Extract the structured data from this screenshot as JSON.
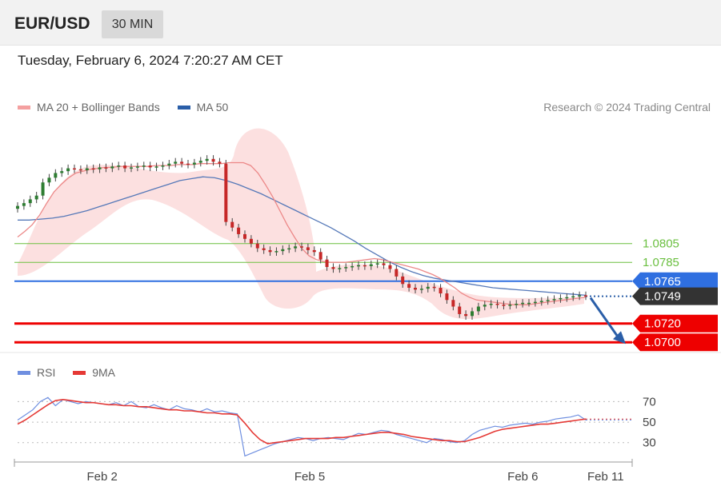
{
  "header": {
    "symbol": "EUR/USD",
    "interval": "30 MIN"
  },
  "datetime": "Tuesday, February 6, 2024 7:20:27 AM CET",
  "legend": {
    "ma20_label": "MA 20 + Bollinger Bands",
    "ma20_color": "#f08080",
    "ma50_label": "MA 50",
    "ma50_color": "#2a5ea8"
  },
  "credit": "Research © 2024 Trading Central",
  "rsi_legend": {
    "rsi_label": "RSI",
    "rsi_color": "#5b7fd6",
    "ma9_label": "9MA",
    "ma9_color": "#e53935"
  },
  "chart_data": [
    {
      "type": "candlestick",
      "title": "EUR/USD",
      "ylim": [
        1.069,
        1.0945
      ],
      "x_ticks": [
        "Feb 2",
        "Feb 5",
        "Feb 6",
        "Feb 11"
      ],
      "current_price": "1.0749",
      "levels": [
        {
          "label": "1.0805",
          "value": 1.0805,
          "kind": "resistance",
          "color": "#6abf3f"
        },
        {
          "label": "1.0785",
          "value": 1.0785,
          "kind": "resistance",
          "color": "#6abf3f"
        },
        {
          "label": "1.0765",
          "value": 1.0765,
          "kind": "pivot",
          "color": "#2f6fe0"
        },
        {
          "label": "1.0749",
          "value": 1.0749,
          "kind": "last",
          "color": "#333333"
        },
        {
          "label": "1.0720",
          "value": 1.072,
          "kind": "support",
          "color": "#ee0000"
        },
        {
          "label": "1.0700",
          "value": 1.07,
          "kind": "support",
          "color": "#ee0000"
        }
      ],
      "close_series": [
        1.0845,
        1.0848,
        1.0852,
        1.0856,
        1.087,
        1.0875,
        1.088,
        1.0882,
        1.0885,
        1.0884,
        1.0883,
        1.0885,
        1.0884,
        1.0886,
        1.0885,
        1.0887,
        1.0888,
        1.0885,
        1.0886,
        1.0887,
        1.0888,
        1.0886,
        1.0887,
        1.0888,
        1.089,
        1.0892,
        1.089,
        1.0889,
        1.0891,
        1.0893,
        1.0895,
        1.0892,
        1.089,
        1.0828,
        1.0822,
        1.0815,
        1.081,
        1.0805,
        1.08,
        1.0798,
        1.0796,
        1.0797,
        1.0799,
        1.08,
        1.0802,
        1.0801,
        1.0798,
        1.0796,
        1.0788,
        1.078,
        1.0778,
        1.0779,
        1.078,
        1.0781,
        1.0782,
        1.0781,
        1.0783,
        1.0784,
        1.0782,
        1.0778,
        1.077,
        1.0762,
        1.0758,
        1.0756,
        1.0757,
        1.0759,
        1.0758,
        1.0752,
        1.0745,
        1.0738,
        1.073,
        1.0728,
        1.0733,
        1.0738,
        1.074,
        1.0741,
        1.074,
        1.0739,
        1.074,
        1.0741,
        1.0742,
        1.0742,
        1.0743,
        1.0744,
        1.0745,
        1.0746,
        1.0747,
        1.0748,
        1.0749,
        1.075,
        1.0749
      ],
      "ma20_series": [
        1.0812,
        1.0818,
        1.0825,
        1.0835,
        1.0848,
        1.086,
        1.0868,
        1.0875,
        1.088,
        1.0882,
        1.0884,
        1.0885,
        1.0886,
        1.0886,
        1.0887,
        1.0887,
        1.0887,
        1.0887,
        1.0887,
        1.0888,
        1.0888,
        1.0888,
        1.0889,
        1.0889,
        1.0889,
        1.089,
        1.089,
        1.089,
        1.089,
        1.0891,
        1.0891,
        1.0891,
        1.0888,
        1.088,
        1.0868,
        1.0855,
        1.084,
        1.0825,
        1.0812,
        1.08,
        1.0792,
        1.0788,
        1.0786,
        1.0785,
        1.0785,
        1.0785,
        1.0786,
        1.0787,
        1.0788,
        1.0789,
        1.0788,
        1.0786,
        1.0784,
        1.0782,
        1.078,
        1.0778,
        1.0775,
        1.0772,
        1.0768,
        1.0763,
        1.0758,
        1.0752,
        1.0748,
        1.0745,
        1.0744,
        1.0743,
        1.0742,
        1.0741,
        1.074,
        1.074,
        1.074,
        1.0741,
        1.0742,
        1.0743,
        1.0744,
        1.0745,
        1.0746,
        1.0747,
        1.0748
      ],
      "ma50_series": [
        1.083,
        1.083,
        1.0831,
        1.0832,
        1.0834,
        1.0837,
        1.084,
        1.0844,
        1.0848,
        1.0852,
        1.0856,
        1.086,
        1.0864,
        1.0868,
        1.0872,
        1.0874,
        1.0876,
        1.0875,
        1.0872,
        1.0868,
        1.0863,
        1.0858,
        1.0852,
        1.0846,
        1.084,
        1.0834,
        1.0828,
        1.0822,
        1.0815,
        1.0808,
        1.08,
        1.0793,
        1.0786,
        1.078,
        1.0775,
        1.0771,
        1.0768,
        1.0766,
        1.0764,
        1.0762,
        1.076,
        1.0758,
        1.0757,
        1.0756,
        1.0755,
        1.0754,
        1.0753,
        1.0752,
        1.0751,
        1.075
      ]
    },
    {
      "type": "line",
      "title": "RSI",
      "ylim": [
        15,
        82
      ],
      "y_ticks": [
        "70",
        "50",
        "30"
      ],
      "series": [
        {
          "name": "RSI",
          "values": [
            52,
            57,
            62,
            70,
            74,
            66,
            72,
            70,
            68,
            70,
            69,
            68,
            67,
            69,
            66,
            70,
            65,
            64,
            67,
            64,
            62,
            66,
            63,
            62,
            60,
            63,
            60,
            61,
            59,
            58,
            17,
            20,
            23,
            26,
            29,
            31,
            33,
            35,
            34,
            32,
            34,
            35,
            34,
            33,
            36,
            39,
            38,
            40,
            42,
            41,
            38,
            36,
            34,
            32,
            30,
            34,
            33,
            31,
            30,
            32,
            38,
            42,
            44,
            46,
            45,
            47,
            48,
            49,
            48,
            50,
            51,
            53,
            54,
            55,
            57,
            52
          ]
        },
        {
          "name": "9MA",
          "values": [
            48,
            52,
            57,
            62,
            67,
            71,
            72,
            71,
            70,
            69,
            69,
            68,
            67,
            67,
            66,
            66,
            65,
            65,
            64,
            63,
            62,
            62,
            61,
            61,
            60,
            59,
            59,
            58,
            58,
            57,
            49,
            40,
            33,
            29,
            30,
            31,
            32,
            33,
            34,
            34,
            34,
            34,
            35,
            35,
            36,
            37,
            38,
            39,
            40,
            40,
            39,
            38,
            36,
            35,
            34,
            33,
            32,
            32,
            31,
            31,
            33,
            35,
            38,
            41,
            43,
            44,
            45,
            46,
            47,
            48,
            48,
            49,
            50,
            51,
            52,
            53
          ]
        }
      ]
    }
  ]
}
